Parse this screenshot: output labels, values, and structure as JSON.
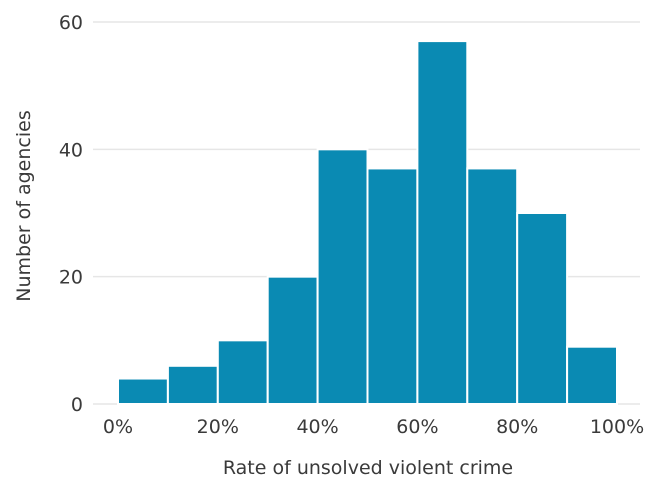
{
  "chart_data": {
    "type": "bar",
    "xlabel": "Rate of unsolved violent crime",
    "ylabel": "Number of agencies",
    "bins": [
      {
        "from": 0,
        "to": 10,
        "value": 4
      },
      {
        "from": 10,
        "to": 20,
        "value": 6
      },
      {
        "from": 20,
        "to": 30,
        "value": 10
      },
      {
        "from": 30,
        "to": 40,
        "value": 20
      },
      {
        "from": 40,
        "to": 50,
        "value": 40
      },
      {
        "from": 50,
        "to": 60,
        "value": 37
      },
      {
        "from": 60,
        "to": 70,
        "value": 57
      },
      {
        "from": 70,
        "to": 80,
        "value": 37
      },
      {
        "from": 80,
        "to": 90,
        "value": 30
      },
      {
        "from": 90,
        "to": 100,
        "value": 9
      }
    ],
    "xlim": [
      0,
      100
    ],
    "ylim": [
      0,
      60
    ],
    "x_ticks": [
      0,
      20,
      40,
      60,
      80,
      100
    ],
    "x_tick_labels": [
      "0%",
      "20%",
      "40%",
      "60%",
      "80%",
      "100%"
    ],
    "y_ticks": [
      0,
      20,
      40,
      60
    ],
    "y_tick_labels": [
      "0",
      "20",
      "40",
      "60"
    ],
    "grid": "horizontal",
    "colors": {
      "bar": "#0a8ab3",
      "grid": "#e6e6e6",
      "text": "#3a3a3a"
    }
  }
}
